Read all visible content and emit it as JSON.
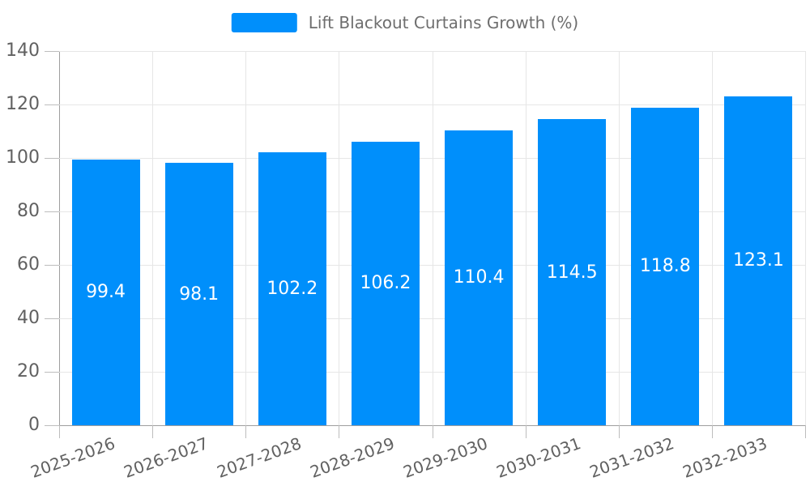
{
  "chart_data": {
    "type": "bar",
    "title": "Lift Blackout Curtains Growth (%)",
    "categories": [
      "2025-2026",
      "2026-2027",
      "2027-2028",
      "2028-2029",
      "2029-2030",
      "2030-2031",
      "2031-2032",
      "2032-2033"
    ],
    "values": [
      99.4,
      98.1,
      102.2,
      106.2,
      110.4,
      114.5,
      118.8,
      123.1
    ],
    "xlabel": "",
    "ylabel": "",
    "ylim": [
      0,
      140
    ],
    "yticks": [
      0,
      20,
      40,
      60,
      80,
      100,
      120,
      140
    ],
    "grid": "horizontal and vertical light gridlines",
    "legend_position": "top-center",
    "x_label_rotation_deg": -20,
    "colors": {
      "bar": "#008FFB",
      "value_label": "#FFFFFF",
      "grid": "#E6E6E6",
      "axis_line": "#9E9E9E",
      "tick": "#BDBDBD",
      "axis_label": "#616161",
      "legend_text": "#6E6E6E",
      "background": "#FFFFFF"
    }
  }
}
